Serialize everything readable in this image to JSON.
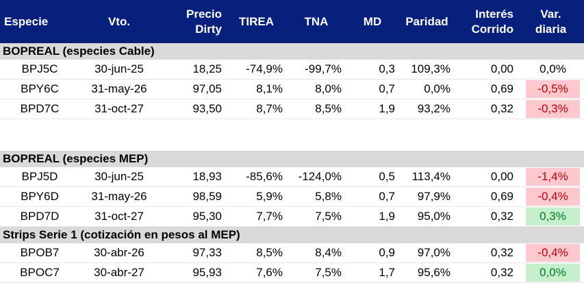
{
  "headers": {
    "especie": "Especie",
    "vto": "Vto.",
    "precio_line1": "Precio",
    "precio_line2": "Dirty",
    "tirea": "TIREA",
    "tna": "TNA",
    "md": "MD",
    "paridad": "Paridad",
    "interes_line1": "Interés",
    "interes_line2": "Corrido",
    "var_line1": "Var.",
    "var_line2": "diaria"
  },
  "colors": {
    "header_bg": "#06207b",
    "section_bg": "#d9d9d9",
    "negative_bg": "#ffc7ce",
    "negative_text": "#c00000",
    "positive_bg": "#c6efce",
    "positive_text": "#007a1f"
  },
  "sections": [
    {
      "title": "BOPREAL (especies Cable)",
      "rows": [
        {
          "especie": "BPJ5C",
          "vto": "30-jun-25",
          "precio": "18,25",
          "tirea": "-74,9%",
          "tna": "-99,7%",
          "md": "0,3",
          "paridad": "109,3%",
          "interes": "0,00",
          "var": "0,0%",
          "var_status": "neutral"
        },
        {
          "especie": "BPY6C",
          "vto": "31-may-26",
          "precio": "97,05",
          "tirea": "8,1%",
          "tna": "8,0%",
          "md": "0,7",
          "paridad": "0,0%",
          "interes": "0,69",
          "var": "-0,5%",
          "var_status": "negative"
        },
        {
          "especie": "BPD7C",
          "vto": "31-oct-27",
          "precio": "93,50",
          "tirea": "8,7%",
          "tna": "8,5%",
          "md": "1,9",
          "paridad": "93,2%",
          "interes": "0,32",
          "var": "-0,3%",
          "var_status": "negative"
        }
      ]
    },
    {
      "title": "BOPREAL (especies MEP)",
      "rows": [
        {
          "especie": "BPJ5D",
          "vto": "30-jun-25",
          "precio": "18,93",
          "tirea": "-85,6%",
          "tna": "-124,0%",
          "md": "0,5",
          "paridad": "113,4%",
          "interes": "0,00",
          "var": "-1,4%",
          "var_status": "negative"
        },
        {
          "especie": "BPY6D",
          "vto": "31-may-26",
          "precio": "98,59",
          "tirea": "5,9%",
          "tna": "5,8%",
          "md": "0,7",
          "paridad": "97,9%",
          "interes": "0,69",
          "var": "-0,4%",
          "var_status": "negative"
        },
        {
          "especie": "BPD7D",
          "vto": "31-oct-27",
          "precio": "95,30",
          "tirea": "7,7%",
          "tna": "7,5%",
          "md": "1,9",
          "paridad": "95,0%",
          "interes": "0,32",
          "var": "0,3%",
          "var_status": "positive"
        }
      ]
    },
    {
      "title": "Strips Serie 1 (cotización en pesos al MEP)",
      "rows": [
        {
          "especie": "BPOB7",
          "vto": "30-abr-26",
          "precio": "97,33",
          "tirea": "8,5%",
          "tna": "8,4%",
          "md": "0,9",
          "paridad": "97,0%",
          "interes": "0,32",
          "var": "-0,4%",
          "var_status": "negative"
        },
        {
          "especie": "BPOC7",
          "vto": "30-abr-27",
          "precio": "95,93",
          "tirea": "7,6%",
          "tna": "7,5%",
          "md": "1,7",
          "paridad": "95,6%",
          "interes": "0,32",
          "var": "0,0%",
          "var_status": "positive"
        }
      ]
    }
  ]
}
